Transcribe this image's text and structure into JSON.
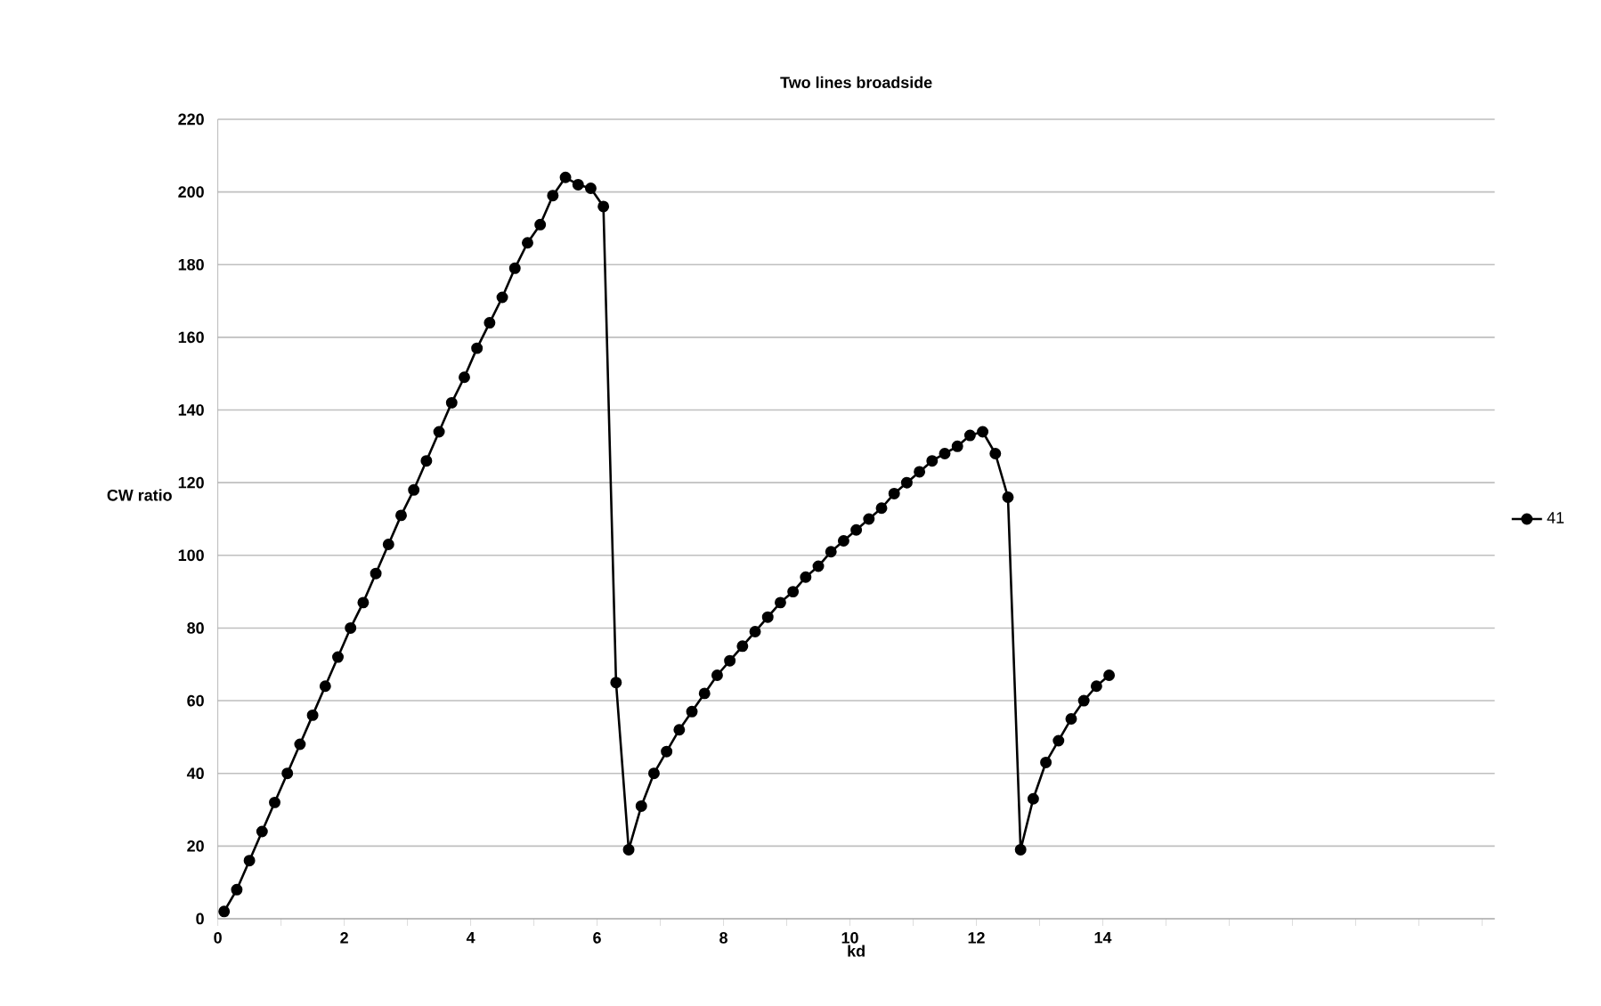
{
  "chart_data": {
    "type": "line",
    "title": "Two lines broadside",
    "xlabel": "kd",
    "ylabel": "CW ratio",
    "x": [
      0.1,
      0.3,
      0.5,
      0.7,
      0.9,
      1.1,
      1.3,
      1.5,
      1.7,
      1.9,
      2.1,
      2.3,
      2.5,
      2.7,
      2.9,
      3.1,
      3.3,
      3.5,
      3.7,
      3.9,
      4.1,
      4.3,
      4.5,
      4.7,
      4.9,
      5.1,
      5.3,
      5.5,
      5.7,
      5.9,
      6.1,
      6.3,
      6.5,
      6.7,
      6.9,
      7.1,
      7.3,
      7.5,
      7.7,
      7.9,
      8.1,
      8.3,
      8.5,
      8.7,
      8.9,
      9.1,
      9.3,
      9.5,
      9.7,
      9.9,
      10.1,
      10.3,
      10.5,
      10.7,
      10.9,
      11.1,
      11.3,
      11.5,
      11.7,
      11.9,
      12.1,
      12.3,
      12.5,
      12.7,
      12.9,
      13.1,
      13.3,
      13.5,
      13.7,
      13.9,
      14.1
    ],
    "series": [
      {
        "name": "41",
        "color": "#000000",
        "values": [
          2,
          8,
          16,
          24,
          32,
          40,
          48,
          56,
          64,
          72,
          80,
          87,
          95,
          103,
          111,
          118,
          126,
          134,
          142,
          149,
          157,
          164,
          171,
          179,
          186,
          191,
          199,
          204,
          202,
          201,
          196,
          65,
          19,
          31,
          40,
          46,
          52,
          57,
          62,
          67,
          71,
          75,
          79,
          83,
          87,
          90,
          94,
          97,
          101,
          104,
          107,
          110,
          113,
          117,
          120,
          123,
          126,
          128,
          130,
          133,
          134,
          128,
          116,
          19,
          33,
          43,
          49,
          55,
          60,
          64,
          67
        ]
      }
    ],
    "xlim": [
      0,
      20.2
    ],
    "xticks": [
      0,
      {
        "value": 1,
        "label": null
      },
      2,
      {
        "value": 3,
        "label": null
      },
      4,
      {
        "value": 5,
        "label": null
      },
      6,
      {
        "value": 7,
        "label": null
      },
      8,
      {
        "value": 9,
        "label": null
      },
      10,
      {
        "value": 11,
        "label": null
      },
      12,
      {
        "value": 13,
        "label": null
      },
      14,
      {
        "value": 15,
        "label": null
      },
      {
        "value": 16,
        "label": null
      },
      {
        "value": 17,
        "label": null
      },
      {
        "value": 18,
        "label": null
      },
      {
        "value": 19,
        "label": null
      },
      {
        "value": 20,
        "label": null
      }
    ],
    "ylim": [
      0,
      220
    ],
    "yticks": [
      0,
      20,
      40,
      60,
      80,
      100,
      120,
      140,
      160,
      180,
      200,
      220
    ],
    "grid": "y",
    "legend": "right",
    "marker": "circle",
    "line_style": "solid"
  }
}
